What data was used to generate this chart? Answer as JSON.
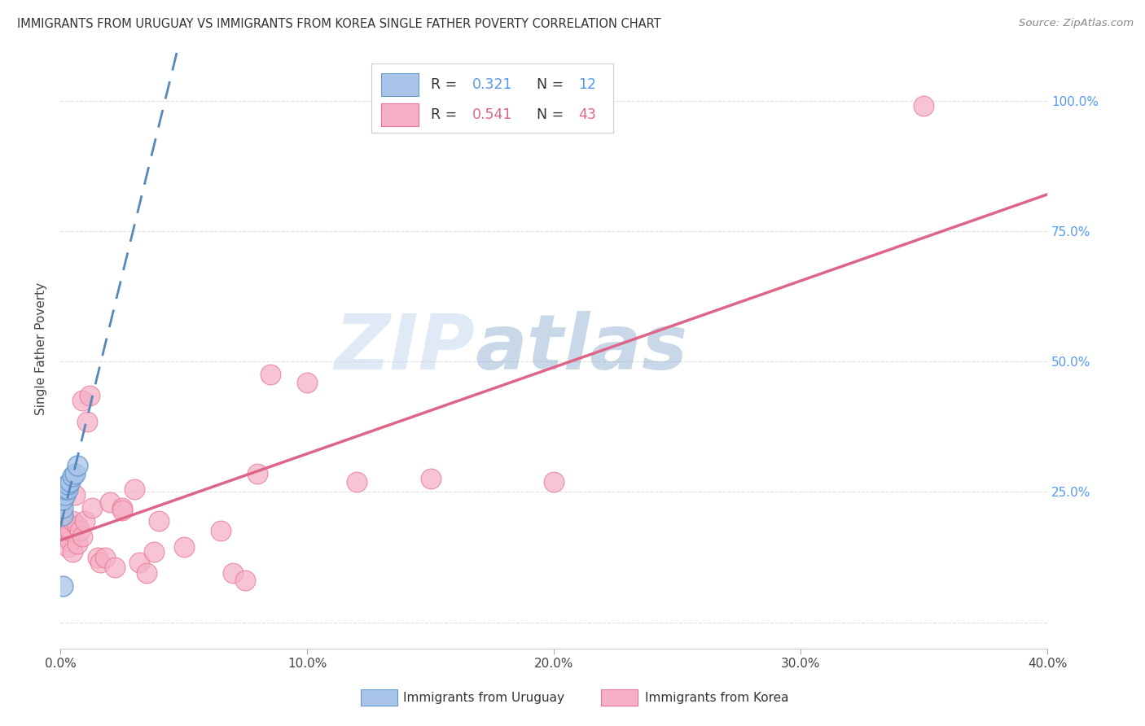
{
  "title": "IMMIGRANTS FROM URUGUAY VS IMMIGRANTS FROM KOREA SINGLE FATHER POVERTY CORRELATION CHART",
  "source": "Source: ZipAtlas.com",
  "ylabel": "Single Father Poverty",
  "xlim": [
    0.0,
    0.4
  ],
  "ylim": [
    -0.05,
    1.1
  ],
  "x_ticks": [
    0.0,
    0.1,
    0.2,
    0.3,
    0.4
  ],
  "x_tick_labels": [
    "0.0%",
    "10.0%",
    "20.0%",
    "30.0%",
    "40.0%"
  ],
  "y_ticks": [
    0.0,
    0.25,
    0.5,
    0.75,
    1.0
  ],
  "y_tick_labels": [
    "",
    "25.0%",
    "50.0%",
    "75.0%",
    "100.0%"
  ],
  "legend_label1": "Immigrants from Uruguay",
  "legend_label2": "Immigrants from Korea",
  "watermark_zip": "ZIP",
  "watermark_atlas": "atlas",
  "uruguay_color": "#a8c4e8",
  "korea_color": "#f5b0c5",
  "uruguay_edge": "#6699cc",
  "korea_edge": "#e87090",
  "uruguay_line_color": "#5588bb",
  "korea_line_color": "#dd6688",
  "uruguay_x": [
    0.001,
    0.001,
    0.001,
    0.002,
    0.002,
    0.003,
    0.003,
    0.004,
    0.005,
    0.006,
    0.007,
    0.001
  ],
  "uruguay_y": [
    0.205,
    0.22,
    0.235,
    0.245,
    0.255,
    0.255,
    0.265,
    0.27,
    0.28,
    0.285,
    0.3,
    0.07
  ],
  "korea_x": [
    0.001,
    0.001,
    0.002,
    0.002,
    0.003,
    0.003,
    0.004,
    0.004,
    0.005,
    0.005,
    0.006,
    0.007,
    0.007,
    0.008,
    0.009,
    0.009,
    0.01,
    0.011,
    0.012,
    0.013,
    0.015,
    0.016,
    0.018,
    0.02,
    0.022,
    0.025,
    0.025,
    0.03,
    0.032,
    0.035,
    0.038,
    0.04,
    0.05,
    0.065,
    0.07,
    0.075,
    0.08,
    0.085,
    0.1,
    0.12,
    0.15,
    0.2,
    0.35
  ],
  "korea_y": [
    0.2,
    0.175,
    0.185,
    0.165,
    0.165,
    0.145,
    0.155,
    0.175,
    0.135,
    0.195,
    0.245,
    0.15,
    0.185,
    0.175,
    0.165,
    0.425,
    0.195,
    0.385,
    0.435,
    0.22,
    0.125,
    0.115,
    0.125,
    0.23,
    0.105,
    0.22,
    0.215,
    0.255,
    0.115,
    0.095,
    0.135,
    0.195,
    0.145,
    0.175,
    0.095,
    0.08,
    0.285,
    0.475,
    0.46,
    0.27,
    0.275,
    0.27,
    0.99
  ],
  "background_color": "#ffffff",
  "grid_color": "#dddddd"
}
